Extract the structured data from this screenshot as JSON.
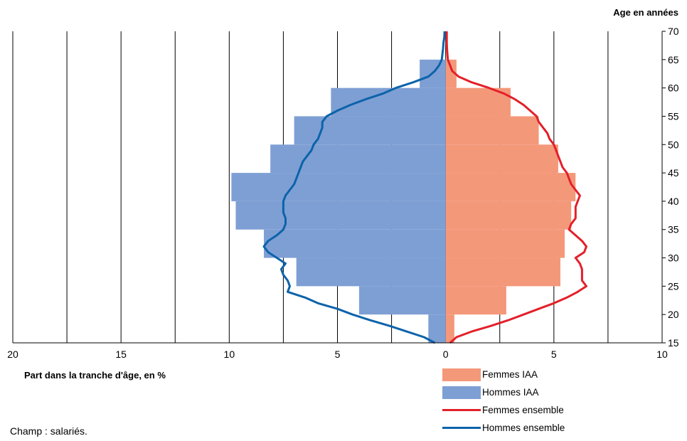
{
  "colors": {
    "femmes_iaa": "#F4987A",
    "hommes_iaa": "#7E9FD4",
    "femmes_ensemble": "#E3202A",
    "hommes_ensemble": "#0C63AA",
    "grid": "#000000"
  },
  "chart_data": {
    "type": "population-pyramid",
    "ylabel": "Age en années",
    "xlabel": "Part dans la tranche d'âge, en %",
    "x_tick_labels": [
      "20",
      "15",
      "10",
      "5",
      "0",
      "5",
      "10"
    ],
    "x_tick_values": [
      -20,
      -15,
      -10,
      -5,
      0,
      5,
      10
    ],
    "xlim": [
      -20,
      10
    ],
    "y_ticks": [
      15,
      20,
      25,
      30,
      35,
      40,
      45,
      50,
      55,
      60,
      65,
      70
    ],
    "ylim": [
      15,
      70
    ],
    "legend_position": "bottom-right",
    "bars": {
      "age_bands": [
        [
          15,
          20
        ],
        [
          20,
          25
        ],
        [
          25,
          30
        ],
        [
          30,
          35
        ],
        [
          35,
          40
        ],
        [
          40,
          45
        ],
        [
          45,
          50
        ],
        [
          50,
          55
        ],
        [
          55,
          60
        ],
        [
          60,
          65
        ],
        [
          65,
          70
        ]
      ],
      "femmes_iaa": [
        0.4,
        2.8,
        5.3,
        5.5,
        5.8,
        6.0,
        5.2,
        4.3,
        3.0,
        0.5,
        0.0
      ],
      "hommes_iaa": [
        0.8,
        4.0,
        6.9,
        8.4,
        9.7,
        9.9,
        8.1,
        7.0,
        5.3,
        1.2,
        0.0
      ]
    },
    "lines": {
      "femmes_ensemble": {
        "age": [
          15,
          16,
          17,
          18,
          19,
          20,
          21,
          22,
          23,
          24,
          25,
          26,
          27,
          28,
          29,
          30,
          31,
          32,
          33,
          34,
          35,
          36,
          37,
          38,
          39,
          40,
          41,
          42,
          43,
          44,
          45,
          46,
          47,
          48,
          49,
          50,
          51,
          52,
          53,
          54,
          55,
          56,
          57,
          58,
          59,
          60,
          61,
          62,
          63,
          64,
          65,
          66,
          67,
          68,
          69,
          70
        ],
        "value": [
          0.2,
          0.5,
          1.2,
          2.1,
          2.9,
          3.6,
          4.3,
          5.0,
          5.6,
          6.1,
          6.5,
          6.3,
          6.3,
          6.3,
          6.2,
          6.0,
          6.4,
          6.5,
          6.3,
          6.0,
          5.7,
          5.8,
          6.0,
          6.0,
          6.0,
          6.1,
          6.2,
          6.0,
          5.8,
          5.7,
          5.6,
          5.4,
          5.3,
          5.2,
          5.1,
          5.0,
          4.8,
          4.7,
          4.5,
          4.3,
          4.2,
          3.9,
          3.6,
          3.2,
          2.7,
          2.0,
          1.2,
          0.6,
          0.3,
          0.2,
          0.1,
          0.08,
          0.06,
          0.05,
          0.05,
          0.05
        ]
      },
      "hommes_ensemble": {
        "age": [
          15,
          16,
          17,
          18,
          19,
          20,
          21,
          22,
          23,
          24,
          25,
          26,
          27,
          28,
          29,
          30,
          31,
          32,
          33,
          34,
          35,
          36,
          37,
          38,
          39,
          40,
          41,
          42,
          43,
          44,
          45,
          46,
          47,
          48,
          49,
          50,
          51,
          52,
          53,
          54,
          55,
          56,
          57,
          58,
          59,
          60,
          61,
          62,
          63,
          64,
          65,
          66,
          67,
          68,
          69,
          70
        ],
        "value": [
          -0.5,
          -1.0,
          -1.8,
          -2.6,
          -3.5,
          -4.3,
          -5.0,
          -5.9,
          -6.5,
          -7.3,
          -7.2,
          -7.3,
          -7.5,
          -7.6,
          -7.4,
          -7.8,
          -8.2,
          -8.4,
          -8.2,
          -7.8,
          -7.5,
          -7.4,
          -7.4,
          -7.5,
          -7.5,
          -7.5,
          -7.4,
          -7.2,
          -7.0,
          -6.9,
          -6.8,
          -6.7,
          -6.6,
          -6.4,
          -6.2,
          -6.1,
          -5.9,
          -5.8,
          -5.7,
          -5.7,
          -5.5,
          -5.0,
          -4.4,
          -3.7,
          -2.9,
          -2.3,
          -1.5,
          -0.8,
          -0.5,
          -0.3,
          -0.18,
          -0.15,
          -0.12,
          -0.1,
          -0.06,
          -0.05
        ]
      }
    }
  },
  "legend": {
    "femmes_iaa": "Femmes IAA",
    "hommes_iaa": "Hommes IAA",
    "femmes_ensemble": "Femmes ensemble",
    "hommes_ensemble": "Hommes ensemble"
  },
  "note": "Champ : salariés."
}
